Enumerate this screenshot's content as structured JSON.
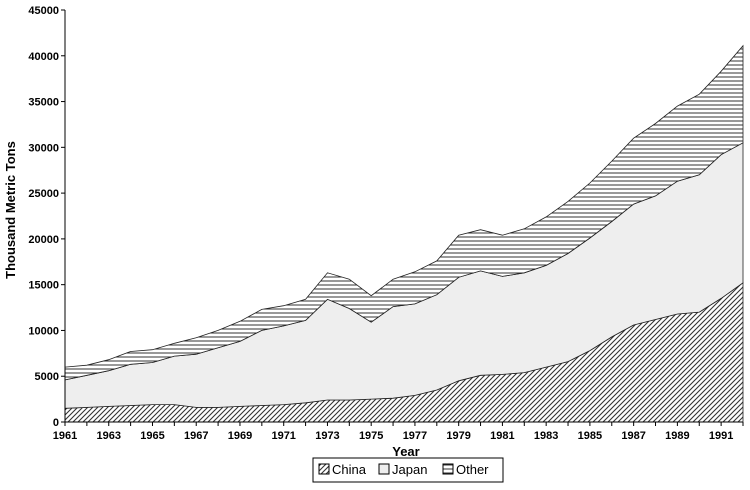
{
  "chart_data": {
    "type": "area",
    "stacked": true,
    "title": "",
    "xlabel": "Year",
    "ylabel": "Thousand Metric Tons",
    "xlim": [
      1961,
      1992
    ],
    "ylim": [
      0,
      45000
    ],
    "x_ticks": [
      "1961",
      "1963",
      "1965",
      "1967",
      "1969",
      "1971",
      "1973",
      "1975",
      "1977",
      "1979",
      "1981",
      "1983",
      "1985",
      "1987",
      "1989",
      "1991"
    ],
    "y_ticks": [
      "0",
      "5000",
      "10000",
      "15000",
      "20000",
      "25000",
      "30000",
      "35000",
      "40000",
      "45000"
    ],
    "legend_position": "bottom",
    "grid": false,
    "x": [
      1961,
      1962,
      1963,
      1964,
      1965,
      1966,
      1967,
      1968,
      1969,
      1970,
      1971,
      1972,
      1973,
      1974,
      1975,
      1976,
      1977,
      1978,
      1979,
      1980,
      1981,
      1982,
      1983,
      1984,
      1985,
      1986,
      1987,
      1988,
      1989,
      1990,
      1991,
      1992
    ],
    "series": [
      {
        "name": "China",
        "pattern": "diagonal",
        "values": [
          1500,
          1600,
          1700,
          1800,
          1900,
          1900,
          1600,
          1600,
          1700,
          1800,
          1900,
          2100,
          2400,
          2400,
          2500,
          2600,
          2900,
          3500,
          4500,
          5100,
          5200,
          5400,
          6000,
          6600,
          7800,
          9300,
          10600,
          11200,
          11800,
          12000,
          13500,
          15200
        ]
      },
      {
        "name": "Japan",
        "pattern": "plain",
        "values": [
          3100,
          3500,
          3900,
          4500,
          4600,
          5300,
          5800,
          6500,
          7100,
          8200,
          8600,
          9000,
          11000,
          10000,
          8400,
          10000,
          10000,
          10400,
          11300,
          11400,
          10700,
          10900,
          11100,
          11800,
          12300,
          12600,
          13200,
          13500,
          14500,
          15000,
          15700,
          15300
        ]
      },
      {
        "name": "Other",
        "pattern": "horizontal",
        "values": [
          1400,
          1100,
          1200,
          1400,
          1400,
          1400,
          1800,
          1900,
          2200,
          2300,
          2200,
          2300,
          2900,
          3200,
          2900,
          3000,
          3500,
          3700,
          4600,
          4500,
          4500,
          4800,
          5300,
          5700,
          6000,
          6600,
          7200,
          7900,
          8200,
          8800,
          9100,
          10600
        ]
      }
    ]
  },
  "ui": {
    "legend_labels": [
      "China",
      "Japan",
      "Other"
    ]
  }
}
